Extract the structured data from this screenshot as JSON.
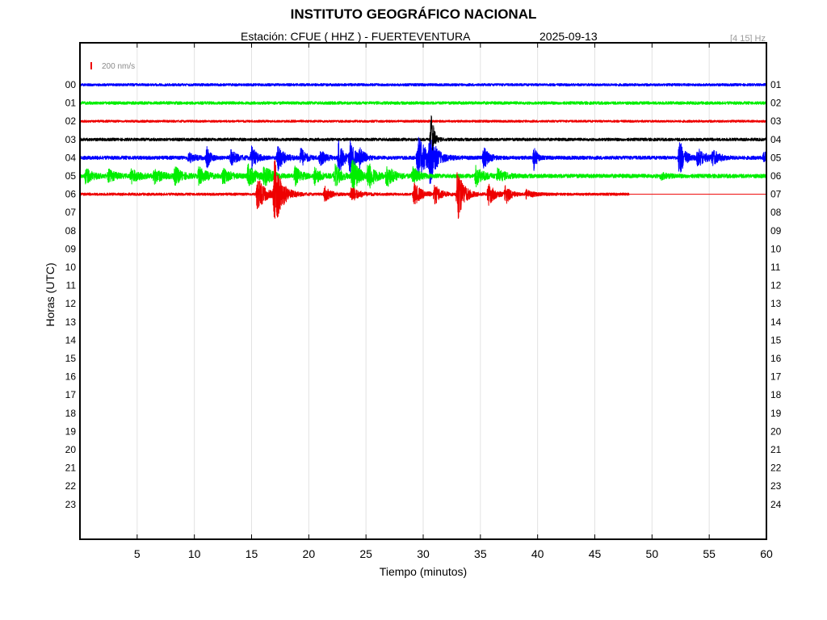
{
  "chart_data": {
    "type": "line",
    "title": "INSTITUTO GEOGRÁFICO NACIONAL",
    "station_label": "Estación:  CFUE ( HHZ ) - FUERTEVENTURA",
    "date": "2025-09-13",
    "filter_band": "[4 15] Hz",
    "scale_label": "200 nm/s",
    "xlabel": "Tiempo (minutos)",
    "ylabel": "Horas (UTC)",
    "xlim": [
      0,
      60
    ],
    "x_ticks": [
      "5",
      "10",
      "15",
      "20",
      "25",
      "30",
      "35",
      "40",
      "45",
      "50",
      "55",
      "60"
    ],
    "left_hour_labels": [
      "00",
      "01",
      "02",
      "03",
      "04",
      "05",
      "06",
      "07",
      "08",
      "09",
      "10",
      "11",
      "12",
      "13",
      "14",
      "15",
      "16",
      "17",
      "18",
      "19",
      "20",
      "21",
      "22",
      "23"
    ],
    "right_hour_labels": [
      "01",
      "02",
      "03",
      "04",
      "05",
      "06",
      "07",
      "08",
      "09",
      "10",
      "11",
      "12",
      "13",
      "14",
      "15",
      "16",
      "17",
      "18",
      "19",
      "20",
      "21",
      "22",
      "23",
      "24"
    ],
    "grid": "vertical",
    "colors": {
      "blue": "#0000ff",
      "green": "#00ee00",
      "red": "#ee0000",
      "black": "#000000",
      "scale": "#ee0000"
    },
    "series": [
      {
        "hour": 0,
        "color": "blue",
        "noise": 1.6,
        "end_minute": 60,
        "bursts": []
      },
      {
        "hour": 1,
        "color": "green",
        "noise": 1.8,
        "end_minute": 60,
        "bursts": []
      },
      {
        "hour": 2,
        "color": "red",
        "noise": 1.4,
        "end_minute": 60,
        "bursts": []
      },
      {
        "hour": 3,
        "color": "black",
        "noise": 1.8,
        "end_minute": 60,
        "bursts": [
          {
            "t": 30.7,
            "amp": 44,
            "w": 0.2
          }
        ]
      },
      {
        "hour": 4,
        "color": "blue",
        "noise": 2.2,
        "end_minute": 60,
        "bursts": [
          {
            "t": 9.5,
            "amp": 6,
            "w": 0.5
          },
          {
            "t": 11.1,
            "amp": 12,
            "w": 0.3
          },
          {
            "t": 13.2,
            "amp": 9,
            "w": 0.5
          },
          {
            "t": 15.0,
            "amp": 14,
            "w": 0.4
          },
          {
            "t": 17.3,
            "amp": 16,
            "w": 0.5
          },
          {
            "t": 19.3,
            "amp": 12,
            "w": 0.4
          },
          {
            "t": 21.0,
            "amp": 10,
            "w": 0.4
          },
          {
            "t": 22.6,
            "amp": 22,
            "w": 0.4
          },
          {
            "t": 23.6,
            "amp": 20,
            "w": 0.4
          },
          {
            "t": 24.5,
            "amp": 14,
            "w": 0.3
          },
          {
            "t": 29.5,
            "amp": 26,
            "w": 0.9
          },
          {
            "t": 30.6,
            "amp": 28,
            "w": 0.4
          },
          {
            "t": 35.3,
            "amp": 13,
            "w": 0.4
          },
          {
            "t": 39.7,
            "amp": 18,
            "w": 0.2
          },
          {
            "t": 52.4,
            "amp": 24,
            "w": 0.4
          },
          {
            "t": 54.0,
            "amp": 11,
            "w": 0.6
          },
          {
            "t": 55.3,
            "amp": 9,
            "w": 0.5
          },
          {
            "t": 59.8,
            "amp": 7,
            "w": 0.3
          }
        ]
      },
      {
        "hour": 5,
        "color": "green",
        "noise": 2.4,
        "end_minute": 60,
        "bursts": [
          {
            "t": 0.5,
            "amp": 9,
            "w": 0.6
          },
          {
            "t": 2.5,
            "amp": 7,
            "w": 0.6
          },
          {
            "t": 4.5,
            "amp": 8,
            "w": 0.7
          },
          {
            "t": 6.5,
            "amp": 8,
            "w": 0.7
          },
          {
            "t": 8.3,
            "amp": 10,
            "w": 0.6
          },
          {
            "t": 10.4,
            "amp": 11,
            "w": 0.6
          },
          {
            "t": 12.5,
            "amp": 10,
            "w": 0.6
          },
          {
            "t": 14.7,
            "amp": 14,
            "w": 0.6
          },
          {
            "t": 16.1,
            "amp": 12,
            "w": 0.6
          },
          {
            "t": 18.8,
            "amp": 11,
            "w": 0.5
          },
          {
            "t": 20.5,
            "amp": 10,
            "w": 0.5
          },
          {
            "t": 22.3,
            "amp": 13,
            "w": 0.5
          },
          {
            "t": 23.8,
            "amp": 24,
            "w": 0.5
          },
          {
            "t": 25.2,
            "amp": 18,
            "w": 0.5
          },
          {
            "t": 26.8,
            "amp": 13,
            "w": 0.6
          },
          {
            "t": 29.1,
            "amp": 11,
            "w": 0.5
          },
          {
            "t": 34.6,
            "amp": 12,
            "w": 0.6
          },
          {
            "t": 36.5,
            "amp": 8,
            "w": 0.6
          },
          {
            "t": 50.8,
            "amp": 4,
            "w": 0.5
          }
        ]
      },
      {
        "hour": 6,
        "color": "red",
        "noise": 1.6,
        "end_minute": 48,
        "bursts": [
          {
            "t": 15.5,
            "amp": 22,
            "w": 0.6
          },
          {
            "t": 17.0,
            "amp": 44,
            "w": 0.6
          },
          {
            "t": 21.4,
            "amp": 9,
            "w": 0.5
          },
          {
            "t": 23.7,
            "amp": 10,
            "w": 0.6
          },
          {
            "t": 29.2,
            "amp": 14,
            "w": 0.6
          },
          {
            "t": 31.0,
            "amp": 12,
            "w": 0.5
          },
          {
            "t": 33.0,
            "amp": 36,
            "w": 0.5
          },
          {
            "t": 35.7,
            "amp": 14,
            "w": 0.5
          },
          {
            "t": 37.2,
            "amp": 12,
            "w": 0.4
          },
          {
            "t": 39.0,
            "amp": 5,
            "w": 0.6
          }
        ]
      }
    ]
  }
}
